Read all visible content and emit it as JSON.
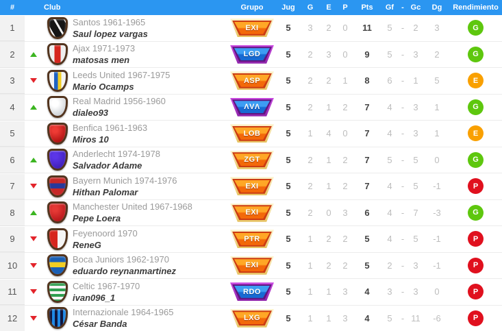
{
  "header": {
    "rank": "#",
    "club": "Club",
    "grupo": "Grupo",
    "jug": "Jug",
    "g": "G",
    "e": "E",
    "p": "P",
    "pts": "Pts",
    "gf": "Gf",
    "dash": "-",
    "gc": "Gc",
    "dg": "Dg",
    "rendimiento": "Rendimiento"
  },
  "misc": {
    "dash": "-"
  },
  "colors": {
    "header_bg": "#2b96f1",
    "rendimiento": {
      "G": "#5ec70e",
      "E": "#f9a000",
      "P": "#e0101e"
    },
    "trend_up": "#3cb521",
    "trend_down": "#e3242b"
  },
  "rows": [
    {
      "rank": "1",
      "trend": "none",
      "shield": "santos",
      "club": "Santos 1961-1965",
      "player": "Saul lopez vargas",
      "group": {
        "label": "EXI",
        "style": "orange"
      },
      "jug": "5",
      "g": "3",
      "e": "2",
      "p": "0",
      "pts": "11",
      "gf": "5",
      "gc": "2",
      "dg": "3",
      "rend": "G"
    },
    {
      "rank": "2",
      "trend": "up",
      "shield": "ajax",
      "club": "Ajax 1971-1973",
      "player": "matosas men",
      "group": {
        "label": "LGD",
        "style": "purple"
      },
      "jug": "5",
      "g": "2",
      "e": "3",
      "p": "0",
      "pts": "9",
      "gf": "5",
      "gc": "3",
      "dg": "2",
      "rend": "G"
    },
    {
      "rank": "3",
      "trend": "down",
      "shield": "leeds",
      "club": "Leeds United 1967-1975",
      "player": "Mario Ocamps",
      "group": {
        "label": "ASP",
        "style": "orange"
      },
      "jug": "5",
      "g": "2",
      "e": "2",
      "p": "1",
      "pts": "8",
      "gf": "6",
      "gc": "1",
      "dg": "5",
      "rend": "E"
    },
    {
      "rank": "4",
      "trend": "up",
      "shield": "realmadrid",
      "club": "Real Madrid 1956-1960",
      "player": "dialeo93",
      "group": {
        "label": "ΛVΛ",
        "style": "purple"
      },
      "jug": "5",
      "g": "2",
      "e": "1",
      "p": "2",
      "pts": "7",
      "gf": "4",
      "gc": "3",
      "dg": "1",
      "rend": "G"
    },
    {
      "rank": "5",
      "trend": "none",
      "shield": "benfica",
      "club": "Benfica 1961-1963",
      "player": "Miros 10",
      "group": {
        "label": "LOB",
        "style": "orange"
      },
      "jug": "5",
      "g": "1",
      "e": "4",
      "p": "0",
      "pts": "7",
      "gf": "4",
      "gc": "3",
      "dg": "1",
      "rend": "E"
    },
    {
      "rank": "6",
      "trend": "up",
      "shield": "anderlecht",
      "club": "Anderlecht 1974-1978",
      "player": "Salvador Adame",
      "group": {
        "label": "ZGT",
        "style": "orange"
      },
      "jug": "5",
      "g": "2",
      "e": "1",
      "p": "2",
      "pts": "7",
      "gf": "5",
      "gc": "5",
      "dg": "0",
      "rend": "G"
    },
    {
      "rank": "7",
      "trend": "down",
      "shield": "bayern",
      "club": "Bayern Munich 1974-1976",
      "player": "Hithan Palomar",
      "group": {
        "label": "EXI",
        "style": "orange"
      },
      "jug": "5",
      "g": "2",
      "e": "1",
      "p": "2",
      "pts": "7",
      "gf": "4",
      "gc": "5",
      "dg": "-1",
      "rend": "P"
    },
    {
      "rank": "8",
      "trend": "up",
      "shield": "manutd",
      "club": "Manchester United 1967-1968",
      "player": "Pepe Loera",
      "group": {
        "label": "EXI",
        "style": "orange"
      },
      "jug": "5",
      "g": "2",
      "e": "0",
      "p": "3",
      "pts": "6",
      "gf": "4",
      "gc": "7",
      "dg": "-3",
      "rend": "G"
    },
    {
      "rank": "9",
      "trend": "down",
      "shield": "feyenoord",
      "club": "Feyenoord 1970",
      "player": "ReneG",
      "group": {
        "label": "PTR",
        "style": "orange"
      },
      "jug": "5",
      "g": "1",
      "e": "2",
      "p": "2",
      "pts": "5",
      "gf": "4",
      "gc": "5",
      "dg": "-1",
      "rend": "P"
    },
    {
      "rank": "10",
      "trend": "down",
      "shield": "boca",
      "club": "Boca Juniors 1962-1970",
      "player": "eduardo reynanmartinez",
      "group": {
        "label": "EXI",
        "style": "orange"
      },
      "jug": "5",
      "g": "1",
      "e": "2",
      "p": "2",
      "pts": "5",
      "gf": "2",
      "gc": "3",
      "dg": "-1",
      "rend": "P"
    },
    {
      "rank": "11",
      "trend": "down",
      "shield": "celtic",
      "club": "Celtic 1967-1970",
      "player": "ivan096_1",
      "group": {
        "label": "RDO",
        "style": "purple"
      },
      "jug": "5",
      "g": "1",
      "e": "1",
      "p": "3",
      "pts": "4",
      "gf": "3",
      "gc": "3",
      "dg": "0",
      "rend": "P"
    },
    {
      "rank": "12",
      "trend": "down",
      "shield": "inter",
      "club": "Internazionale 1964-1965",
      "player": "César Banda",
      "group": {
        "label": "LXG",
        "style": "orange"
      },
      "jug": "5",
      "g": "1",
      "e": "1",
      "p": "3",
      "pts": "4",
      "gf": "5",
      "gc": "11",
      "dg": "-6",
      "rend": "P"
    }
  ]
}
